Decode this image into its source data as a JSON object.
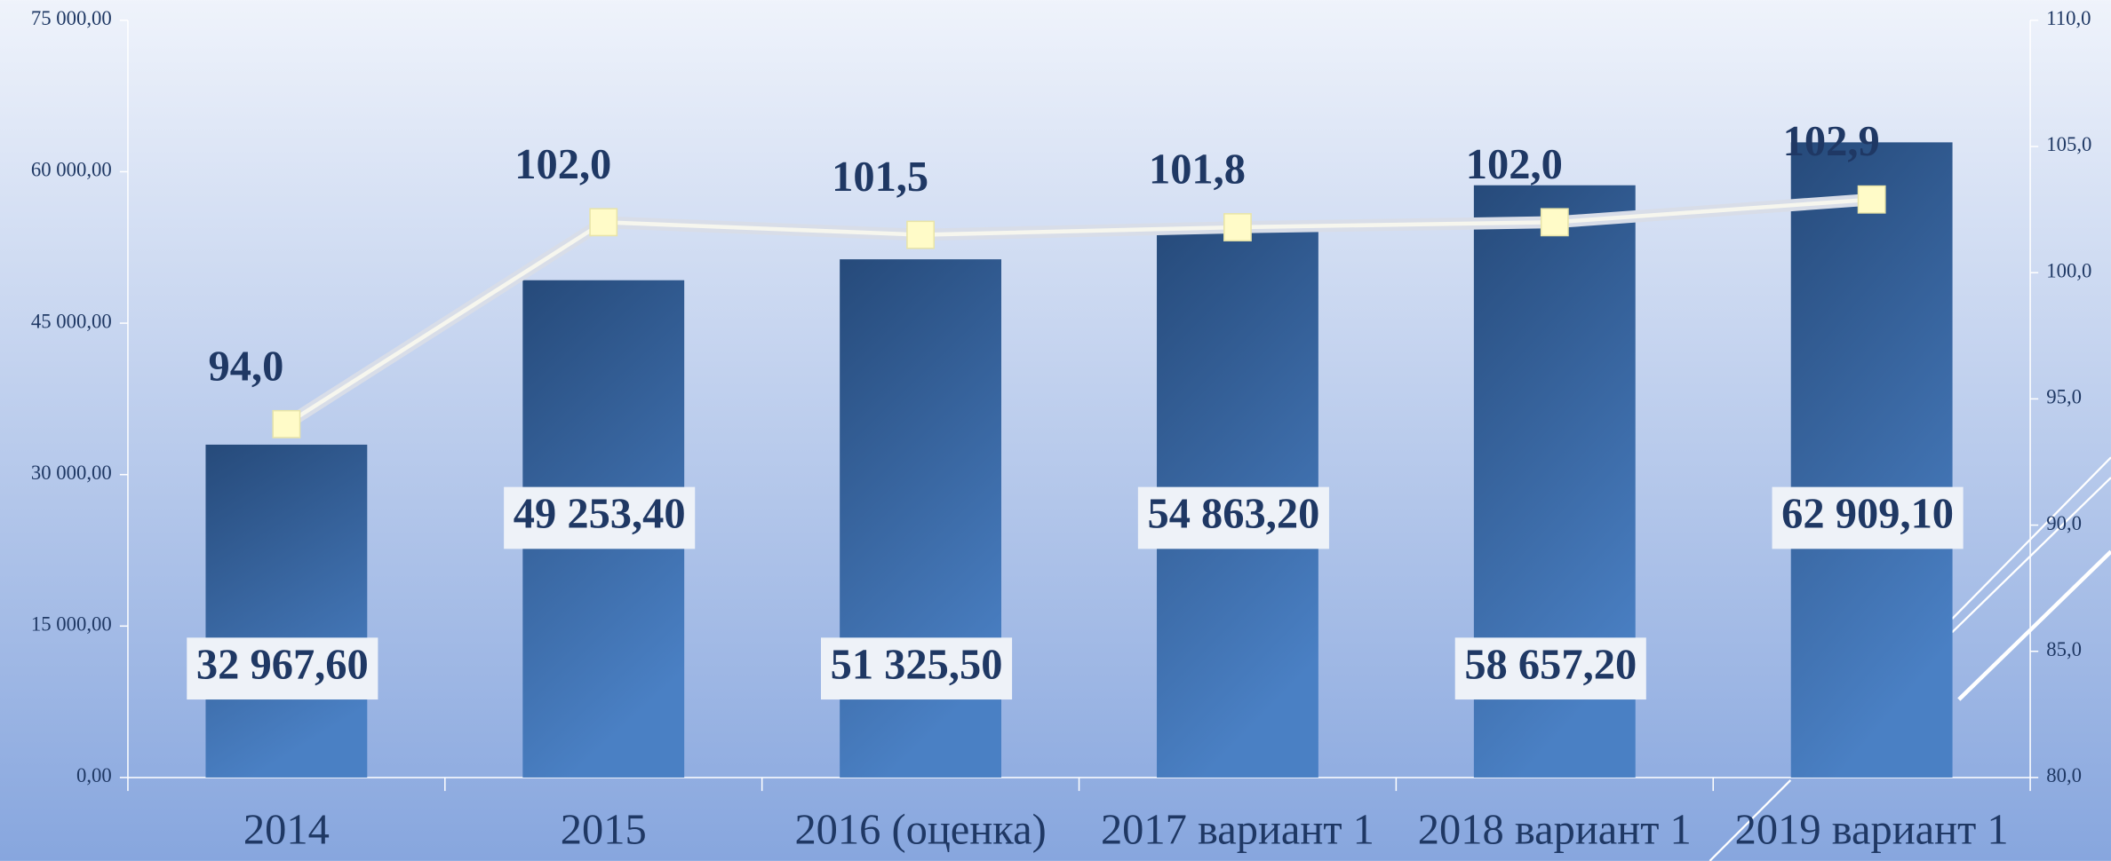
{
  "chart_data": {
    "type": "bar_line",
    "categories": [
      "2014",
      "2015",
      "2016 (оценка)",
      "2017  вариант 1",
      "2018  вариант 1",
      "2019  вариант 1"
    ],
    "series": [
      {
        "type": "bar",
        "color": "#3a6aa8",
        "values": [
          32967.6,
          49253.4,
          51325.5,
          54863.2,
          58657.2,
          62909.1
        ],
        "value_labels": [
          "32 967,60",
          "49 253,40",
          "51 325,50",
          "54 863,20",
          "58 657,20",
          "62 909,10"
        ]
      },
      {
        "type": "line",
        "axis": "y2",
        "color": "#fffbc8",
        "values": [
          94.0,
          102.0,
          101.5,
          101.8,
          102.0,
          102.9
        ],
        "value_labels": [
          "94,0",
          "102,0",
          "101,5",
          "101,8",
          "102,0",
          "102,9"
        ]
      }
    ],
    "ylim": [
      0,
      75000
    ],
    "yticks": [
      {
        "value": 0,
        "label": "0,00"
      },
      {
        "value": 15000,
        "label": "15 000,00"
      },
      {
        "value": 30000,
        "label": "30 000,00"
      },
      {
        "value": 45000,
        "label": "45 000,00"
      },
      {
        "value": 60000,
        "label": "60 000,00"
      },
      {
        "value": 75000,
        "label": "75 000,00"
      }
    ],
    "y2lim": [
      80,
      110
    ],
    "y2ticks": [
      {
        "value": 80,
        "label": "80,0"
      },
      {
        "value": 85,
        "label": "85,0"
      },
      {
        "value": 90,
        "label": "90,0"
      },
      {
        "value": 95,
        "label": "95,0"
      },
      {
        "value": 100,
        "label": "100,0"
      },
      {
        "value": 105,
        "label": "105,0"
      },
      {
        "value": 110,
        "label": "110,0"
      }
    ]
  }
}
